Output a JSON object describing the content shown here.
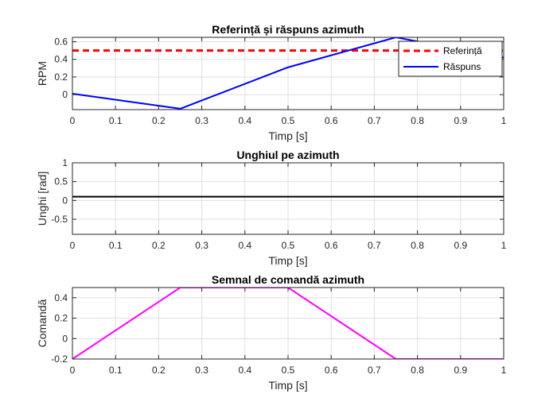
{
  "chart_data": [
    {
      "type": "line",
      "title": "Referință și răspuns azimuth",
      "xlabel": "Timp [s]",
      "ylabel": "RPM",
      "xlim": [
        0,
        1
      ],
      "ylim": [
        -0.17,
        0.65
      ],
      "xticks": [
        0,
        0.1,
        0.2,
        0.3,
        0.4,
        0.5,
        0.6,
        0.7,
        0.8,
        0.9,
        1
      ],
      "xtick_labels": [
        "0",
        "0.1",
        "0.2",
        "0.3",
        "0.4",
        "0.5",
        "0.6",
        "0.7",
        "0.8",
        "0.9",
        "1"
      ],
      "yticks": [
        0,
        0.2,
        0.4,
        0.6
      ],
      "ytick_labels": [
        "0",
        "0.2",
        "0.4",
        "0.6"
      ],
      "grid": true,
      "legend_position": "top-right",
      "series": [
        {
          "name": "Referință",
          "color": "#ff0000",
          "style": "dashed",
          "x": [
            0,
            1
          ],
          "y": [
            0.5,
            0.5
          ]
        },
        {
          "name": "Răspuns",
          "color": "#0000ff",
          "style": "solid",
          "x": [
            0,
            0.25,
            0.5,
            0.75,
            1
          ],
          "y": [
            0.01,
            -0.16,
            0.31,
            0.65,
            0.42
          ]
        }
      ]
    },
    {
      "type": "line",
      "title": "Unghiul pe azimuth",
      "xlabel": "Timp [s]",
      "ylabel": "Unghi [rad]",
      "xlim": [
        0,
        1
      ],
      "ylim": [
        -0.9,
        1.0
      ],
      "xticks": [
        0,
        0.1,
        0.2,
        0.3,
        0.4,
        0.5,
        0.6,
        0.7,
        0.8,
        0.9,
        1
      ],
      "xtick_labels": [
        "0",
        "0.1",
        "0.2",
        "0.3",
        "0.4",
        "0.5",
        "0.6",
        "0.7",
        "0.8",
        "0.9",
        "1"
      ],
      "yticks": [
        -0.5,
        0,
        0.5,
        1
      ],
      "ytick_labels": [
        "-0.5",
        "0",
        "0.5",
        "1"
      ],
      "grid": true,
      "series": [
        {
          "color": "#000000",
          "style": "solid",
          "x": [
            0,
            1
          ],
          "y": [
            0.1,
            0.1
          ]
        }
      ]
    },
    {
      "type": "line",
      "title": "Semnal de comandă azimuth",
      "xlabel": "Timp [s]",
      "ylabel": "Comandă",
      "xlim": [
        0,
        1
      ],
      "ylim": [
        -0.2,
        0.5
      ],
      "xticks": [
        0,
        0.1,
        0.2,
        0.3,
        0.4,
        0.5,
        0.6,
        0.7,
        0.8,
        0.9,
        1
      ],
      "xtick_labels": [
        "0",
        "0.1",
        "0.2",
        "0.3",
        "0.4",
        "0.5",
        "0.6",
        "0.7",
        "0.8",
        "0.9",
        "1"
      ],
      "yticks": [
        -0.2,
        0,
        0.2,
        0.4
      ],
      "ytick_labels": [
        "-0.2",
        "0",
        "0.2",
        "0.4"
      ],
      "grid": true,
      "series": [
        {
          "color": "#ff00ff",
          "style": "solid",
          "x": [
            0,
            0.25,
            0.5,
            0.75,
            1
          ],
          "y": [
            -0.2,
            0.5,
            0.5,
            -0.2,
            -0.2
          ]
        }
      ]
    }
  ]
}
